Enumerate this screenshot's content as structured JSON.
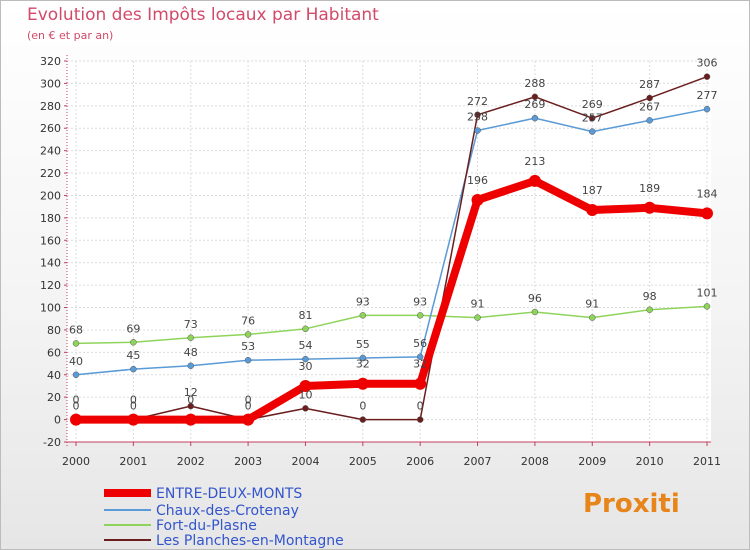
{
  "header": {
    "title": "Evolution des Impôts locaux par Habitant",
    "subtitle": "(en € et par an)"
  },
  "logo": {
    "text": "Proxiti"
  },
  "chart_data": {
    "type": "line",
    "title": "Evolution des Impôts locaux par Habitant",
    "subtitle": "(en € et par an)",
    "xlabel": "",
    "ylabel": "",
    "ylim": [
      -20,
      320
    ],
    "yticks": [
      -20,
      0,
      20,
      40,
      60,
      80,
      100,
      120,
      140,
      160,
      180,
      200,
      220,
      240,
      260,
      280,
      300,
      320
    ],
    "grid": true,
    "legend_position": "bottom-left",
    "categories": [
      "2000",
      "2001",
      "2002",
      "2003",
      "2004",
      "2005",
      "2006",
      "2007",
      "2008",
      "2009",
      "2010",
      "2011"
    ],
    "series": [
      {
        "name": "ENTRE-DEUX-MONTS",
        "color": "#ee0000",
        "values": [
          0,
          0,
          0,
          0,
          30,
          32,
          32,
          196,
          213,
          187,
          189,
          184
        ]
      },
      {
        "name": "Chaux-des-Crotenay",
        "color": "#5a9ad6",
        "values": [
          40,
          45,
          48,
          53,
          54,
          55,
          56,
          258,
          269,
          257,
          267,
          277
        ]
      },
      {
        "name": "Fort-du-Plasne",
        "color": "#8ed45a",
        "values": [
          68,
          69,
          73,
          76,
          81,
          93,
          93,
          91,
          96,
          91,
          98,
          101
        ]
      },
      {
        "name": "Les Planches-en-Montagne",
        "color": "#6b1e1e",
        "values": [
          0,
          0,
          12,
          0,
          10,
          0,
          0,
          272,
          288,
          269,
          287,
          306
        ]
      }
    ]
  }
}
